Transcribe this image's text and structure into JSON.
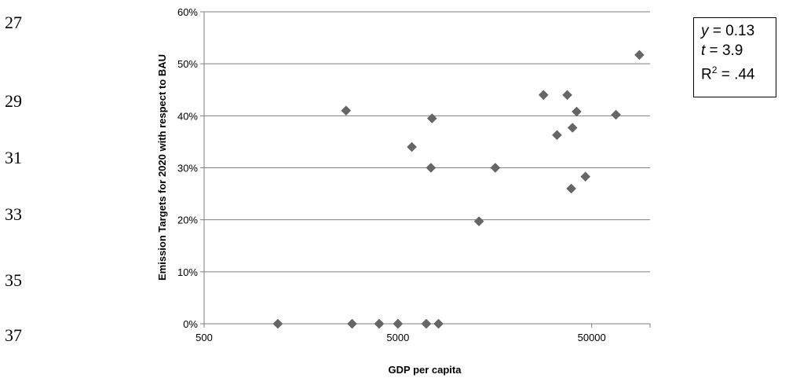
{
  "line_numbers": [
    "27",
    "29",
    "31",
    "33",
    "35",
    "37"
  ],
  "stats": {
    "y_var": "y",
    "y_value": "0.13",
    "t_var": "t",
    "t_value": "3.9",
    "r2_var": "R",
    "r2_sup": "2",
    "r2_value": ".44"
  },
  "chart_data": {
    "type": "scatter",
    "xlabel": "GDP per capita",
    "ylabel": "Emission Targets for 2020 with respect to BAU",
    "x_scale": "log",
    "xlim": [
      500,
      100000
    ],
    "ylim": [
      0,
      60
    ],
    "x_ticks": [
      "500",
      "5000",
      "50000"
    ],
    "x_tick_values": [
      500,
      5000,
      50000
    ],
    "y_ticks": [
      "0%",
      "10%",
      "20%",
      "30%",
      "40%",
      "50%",
      "60%"
    ],
    "y_tick_values": [
      0,
      10,
      20,
      30,
      40,
      50,
      60
    ],
    "grid": "horizontal",
    "marker": "diamond",
    "marker_color": "#666666",
    "points": [
      {
        "x": 1200,
        "y": 0
      },
      {
        "x": 2700,
        "y": 41
      },
      {
        "x": 2900,
        "y": 0
      },
      {
        "x": 4000,
        "y": 0
      },
      {
        "x": 5000,
        "y": 0
      },
      {
        "x": 5900,
        "y": 34
      },
      {
        "x": 7000,
        "y": 0
      },
      {
        "x": 7400,
        "y": 30
      },
      {
        "x": 7500,
        "y": 39.5
      },
      {
        "x": 8100,
        "y": 0
      },
      {
        "x": 13100,
        "y": 19.7
      },
      {
        "x": 15900,
        "y": 30
      },
      {
        "x": 28200,
        "y": 44
      },
      {
        "x": 33100,
        "y": 36.3
      },
      {
        "x": 37400,
        "y": 44
      },
      {
        "x": 39200,
        "y": 26
      },
      {
        "x": 39800,
        "y": 37.7
      },
      {
        "x": 41800,
        "y": 40.8
      },
      {
        "x": 46400,
        "y": 28.3
      },
      {
        "x": 66700,
        "y": 40.2
      },
      {
        "x": 88100,
        "y": 51.7
      }
    ]
  }
}
